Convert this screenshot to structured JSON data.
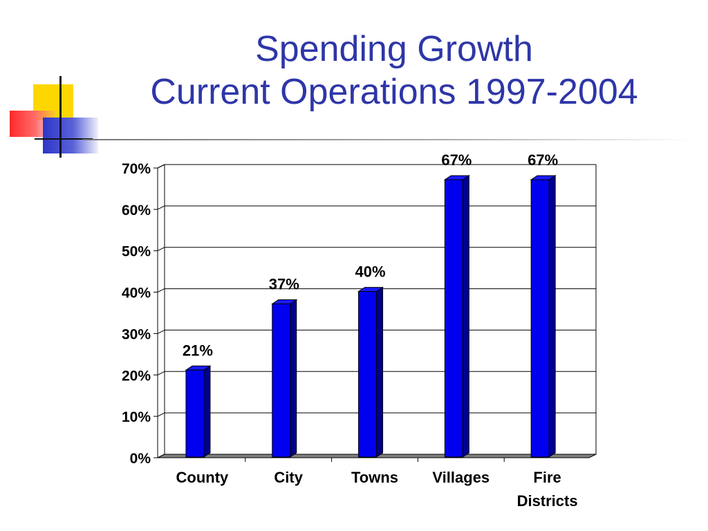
{
  "slide": {
    "title_line1": "Spending Growth",
    "title_line2": "Current Operations 1997-2004",
    "title_color": "#2e36a8",
    "accent_colors": [
      "#ffd700",
      "#ff3b3b",
      "#2e36c8"
    ]
  },
  "chart_data": {
    "type": "bar",
    "categories": [
      [
        "County"
      ],
      [
        "City"
      ],
      [
        "Towns"
      ],
      [
        "Villages"
      ],
      [
        "Fire",
        "Districts"
      ]
    ],
    "values": [
      21,
      37,
      40,
      67,
      67
    ],
    "data_labels": [
      "21%",
      "37%",
      "40%",
      "67%",
      "67%"
    ],
    "ylim": [
      0,
      70
    ],
    "yticks": [
      "0%",
      "10%",
      "20%",
      "30%",
      "40%",
      "50%",
      "60%",
      "70%"
    ],
    "grid": true,
    "bar_color": "#0000ee",
    "bar_side_color": "#00008f",
    "bar_top_color": "#1a1aff",
    "style": "3d"
  }
}
